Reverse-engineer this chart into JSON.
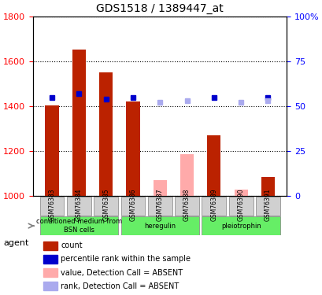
{
  "title": "GDS1518 / 1389447_at",
  "samples": [
    "GSM76383",
    "GSM76384",
    "GSM76385",
    "GSM76386",
    "GSM76387",
    "GSM76388",
    "GSM76389",
    "GSM76390",
    "GSM76391"
  ],
  "bar_values": [
    1405,
    1650,
    1550,
    1420,
    null,
    null,
    1270,
    null,
    1085
  ],
  "bar_absent_values": [
    null,
    null,
    null,
    null,
    1070,
    1185,
    null,
    1030,
    null
  ],
  "rank_values": [
    55,
    57,
    54,
    55,
    null,
    null,
    55,
    null,
    55
  ],
  "rank_absent_values": [
    null,
    null,
    null,
    null,
    52,
    53,
    null,
    52,
    53
  ],
  "ymin": 1000,
  "ymax": 1800,
  "yticks": [
    1000,
    1200,
    1400,
    1600,
    1800
  ],
  "y2min": 0,
  "y2max": 100,
  "y2ticks": [
    0,
    25,
    50,
    75,
    100
  ],
  "bar_color": "#bb2200",
  "bar_absent_color": "#ffaaaa",
  "rank_color": "#0000cc",
  "rank_absent_color": "#aaaaee",
  "agent_groups": [
    {
      "label": "conditioned medium from\nBSN cells",
      "samples": [
        "GSM76383",
        "GSM76384",
        "GSM76385"
      ],
      "color": "#99ff99"
    },
    {
      "label": "heregulin",
      "samples": [
        "GSM76386",
        "GSM76387",
        "GSM76388"
      ],
      "color": "#99ff99"
    },
    {
      "label": "pleiotrophin",
      "samples": [
        "GSM76389",
        "GSM76390",
        "GSM76391"
      ],
      "color": "#99ff99"
    }
  ],
  "legend_items": [
    {
      "label": "count",
      "color": "#bb2200"
    },
    {
      "label": "percentile rank within the sample",
      "color": "#0000cc"
    },
    {
      "label": "value, Detection Call = ABSENT",
      "color": "#ffaaaa"
    },
    {
      "label": "rank, Detection Call = ABSENT",
      "color": "#aaaaee"
    }
  ],
  "xlabel": "agent"
}
